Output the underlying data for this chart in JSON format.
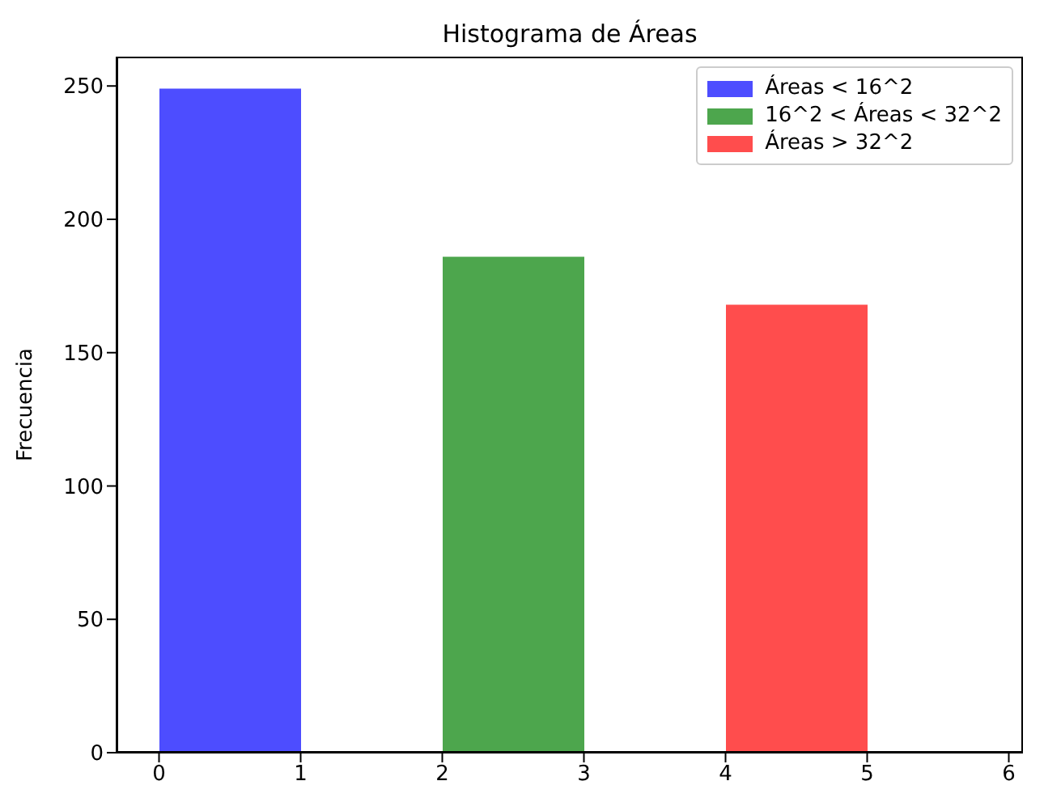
{
  "chart_data": {
    "type": "bar",
    "title": "Histograma de Áreas",
    "ylabel": "Frecuencia",
    "series": [
      {
        "name": "Áreas < 16^2",
        "color": "#4d4dff",
        "x": [
          0.5
        ],
        "values": [
          249
        ]
      },
      {
        "name": "16^2 < Áreas < 32^2",
        "color": "#4da64d",
        "x": [
          2.5
        ],
        "values": [
          186
        ]
      },
      {
        "name": "Áreas > 32^2",
        "color": "#ff4d4d",
        "x": [
          4.5
        ],
        "values": [
          168
        ]
      }
    ],
    "xlim": [
      -0.3,
      6.1
    ],
    "xticks": [
      0,
      1,
      2,
      3,
      4,
      5,
      6
    ],
    "ylim": [
      0,
      261
    ],
    "yticks": [
      0,
      50,
      100,
      150,
      200,
      250
    ],
    "grid": false,
    "legend": "top right"
  }
}
